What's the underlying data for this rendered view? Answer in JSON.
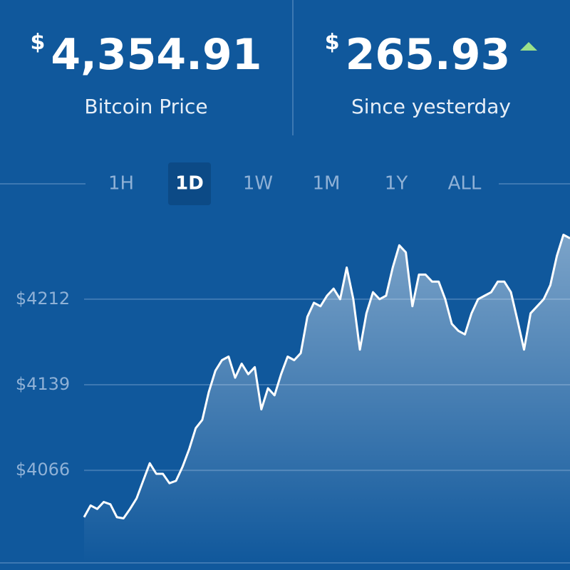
{
  "header": {
    "price_currency": "$",
    "price": "4,354.91",
    "price_label": "Bitcoin Price",
    "change_currency": "$",
    "change": "265.93",
    "change_label": "Since yesterday"
  },
  "tabs": [
    "1H",
    "1D",
    "1W",
    "1M",
    "1Y",
    "ALL"
  ],
  "selected_tab": 1,
  "chart_data": {
    "type": "line",
    "color": "#ffffff",
    "ylim": [
      3987,
      4291
    ],
    "yticks": [
      {
        "value": 4066,
        "label": "$4066"
      },
      {
        "value": 4139,
        "label": "$4139"
      },
      {
        "value": 4212,
        "label": "$4212"
      }
    ],
    "grid": true,
    "values": [
      4026,
      4036,
      4033,
      4039,
      4037,
      4026,
      4025,
      4033,
      4042,
      4057,
      4072,
      4063,
      4063,
      4055,
      4057,
      4069,
      4084,
      4102,
      4109,
      4133,
      4151,
      4160,
      4163,
      4145,
      4157,
      4148,
      4154,
      4118,
      4136,
      4130,
      4148,
      4163,
      4160,
      4166,
      4197,
      4209,
      4206,
      4215,
      4221,
      4212,
      4239,
      4212,
      4169,
      4200,
      4218,
      4212,
      4215,
      4239,
      4258,
      4252,
      4206,
      4233,
      4233,
      4227,
      4227,
      4212,
      4191,
      4185,
      4182,
      4200,
      4212,
      4215,
      4218,
      4227,
      4227,
      4218,
      4194,
      4169,
      4200,
      4206,
      4212,
      4224,
      4249,
      4267,
      4264
    ]
  }
}
